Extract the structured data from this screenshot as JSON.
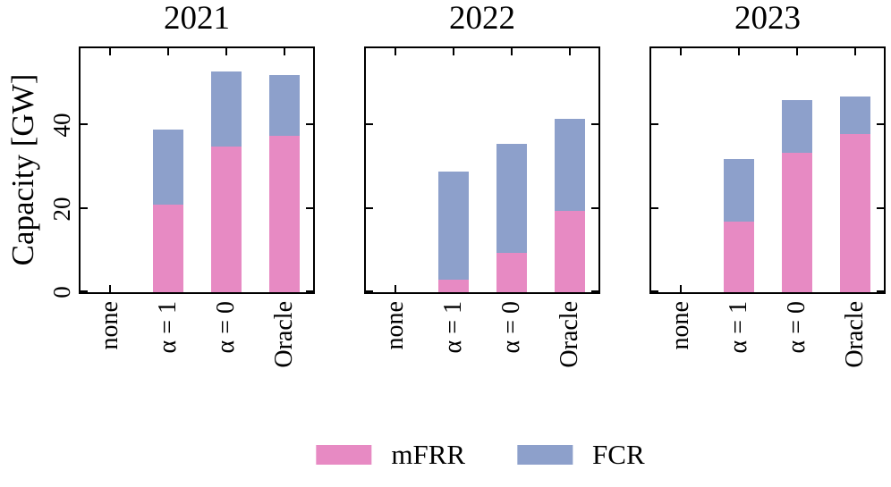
{
  "figure": {
    "background": "#ffffff",
    "text_color": "#000000",
    "frame_color": "#000000"
  },
  "chart_data": {
    "type": "bar",
    "stacked": true,
    "ylabel": "Capacity [GW]",
    "categories": [
      "none",
      "α = 1",
      "α = 0",
      "Oracle"
    ],
    "yticks": [
      0,
      20,
      40
    ],
    "ylim": [
      0,
      58.5
    ],
    "grid": false,
    "legend_position": "bottom",
    "panels": [
      {
        "title": "2021",
        "series": [
          {
            "name": "mFRR",
            "values": [
              0,
              21,
              35,
              37.5
            ]
          },
          {
            "name": "FCR",
            "values": [
              0,
              18,
              18,
              14.5
            ]
          }
        ]
      },
      {
        "title": "2022",
        "series": [
          {
            "name": "mFRR",
            "values": [
              0,
              3,
              9.5,
              19.5
            ]
          },
          {
            "name": "FCR",
            "values": [
              0,
              26,
              26,
              22
            ]
          }
        ]
      },
      {
        "title": "2023",
        "series": [
          {
            "name": "mFRR",
            "values": [
              0,
              17,
              33.5,
              38
            ]
          },
          {
            "name": "FCR",
            "values": [
              0,
              15,
              12.5,
              9
            ]
          }
        ]
      }
    ],
    "legend": [
      {
        "label": "mFRR",
        "color": "#e78ac3"
      },
      {
        "label": "FCR",
        "color": "#8da0cb"
      }
    ]
  }
}
